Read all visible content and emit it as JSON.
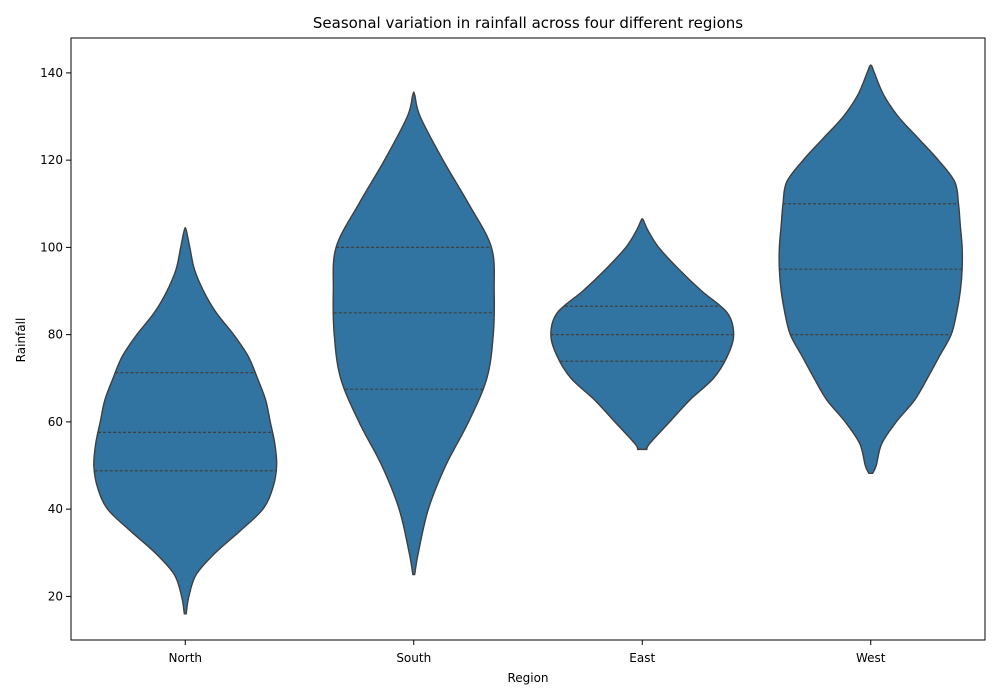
{
  "chart_data": {
    "type": "violin",
    "title": "Seasonal variation in rainfall across four different regions",
    "xlabel": "Region",
    "ylabel": "Rainfall",
    "categories": [
      "North",
      "South",
      "East",
      "West"
    ],
    "ylim": [
      10,
      148
    ],
    "yticks": [
      20,
      40,
      60,
      80,
      100,
      120,
      140
    ],
    "grid": false,
    "color": "#3274a1",
    "edge_color": "#3f3f3f",
    "violins": [
      {
        "category": "North",
        "min": 16,
        "max": 104,
        "quartiles": [
          48.8,
          57.6,
          71.3
        ],
        "profile": [
          [
            16,
            0.01
          ],
          [
            20,
            0.04
          ],
          [
            25,
            0.12
          ],
          [
            30,
            0.33
          ],
          [
            35,
            0.6
          ],
          [
            40,
            0.85
          ],
          [
            45,
            0.96
          ],
          [
            50,
            1.0
          ],
          [
            55,
            0.98
          ],
          [
            60,
            0.93
          ],
          [
            65,
            0.88
          ],
          [
            70,
            0.79
          ],
          [
            75,
            0.69
          ],
          [
            80,
            0.53
          ],
          [
            85,
            0.34
          ],
          [
            90,
            0.2
          ],
          [
            95,
            0.1
          ],
          [
            100,
            0.05
          ],
          [
            104,
            0.01
          ]
        ]
      },
      {
        "category": "South",
        "min": 25,
        "max": 135,
        "quartiles": [
          67.5,
          85,
          100
        ],
        "profile": [
          [
            25,
            0.01
          ],
          [
            30,
            0.05
          ],
          [
            40,
            0.16
          ],
          [
            50,
            0.35
          ],
          [
            60,
            0.6
          ],
          [
            70,
            0.8
          ],
          [
            80,
            0.87
          ],
          [
            90,
            0.88
          ],
          [
            100,
            0.85
          ],
          [
            110,
            0.6
          ],
          [
            120,
            0.32
          ],
          [
            130,
            0.07
          ],
          [
            135,
            0.01
          ]
        ]
      },
      {
        "category": "East",
        "min": 53.7,
        "max": 106.3,
        "quartiles": [
          73.9,
          80,
          86.5
        ],
        "profile": [
          [
            53.7,
            0.05
          ],
          [
            55,
            0.08
          ],
          [
            60,
            0.3
          ],
          [
            65,
            0.52
          ],
          [
            70,
            0.78
          ],
          [
            75,
            0.93
          ],
          [
            80,
            1.0
          ],
          [
            85,
            0.93
          ],
          [
            90,
            0.65
          ],
          [
            95,
            0.4
          ],
          [
            100,
            0.18
          ],
          [
            104,
            0.06
          ],
          [
            106.3,
            0.01
          ]
        ]
      },
      {
        "category": "West",
        "min": 48.2,
        "max": 141.6,
        "quartiles": [
          80,
          95,
          110
        ],
        "profile": [
          [
            48.2,
            0.02
          ],
          [
            50,
            0.06
          ],
          [
            55,
            0.12
          ],
          [
            60,
            0.28
          ],
          [
            65,
            0.48
          ],
          [
            70,
            0.62
          ],
          [
            75,
            0.75
          ],
          [
            80,
            0.88
          ],
          [
            85,
            0.94
          ],
          [
            90,
            0.98
          ],
          [
            95,
            1.0
          ],
          [
            100,
            1.0
          ],
          [
            105,
            0.98
          ],
          [
            110,
            0.96
          ],
          [
            115,
            0.92
          ],
          [
            120,
            0.74
          ],
          [
            125,
            0.52
          ],
          [
            130,
            0.3
          ],
          [
            135,
            0.14
          ],
          [
            140,
            0.04
          ],
          [
            141.6,
            0.01
          ]
        ]
      }
    ]
  }
}
